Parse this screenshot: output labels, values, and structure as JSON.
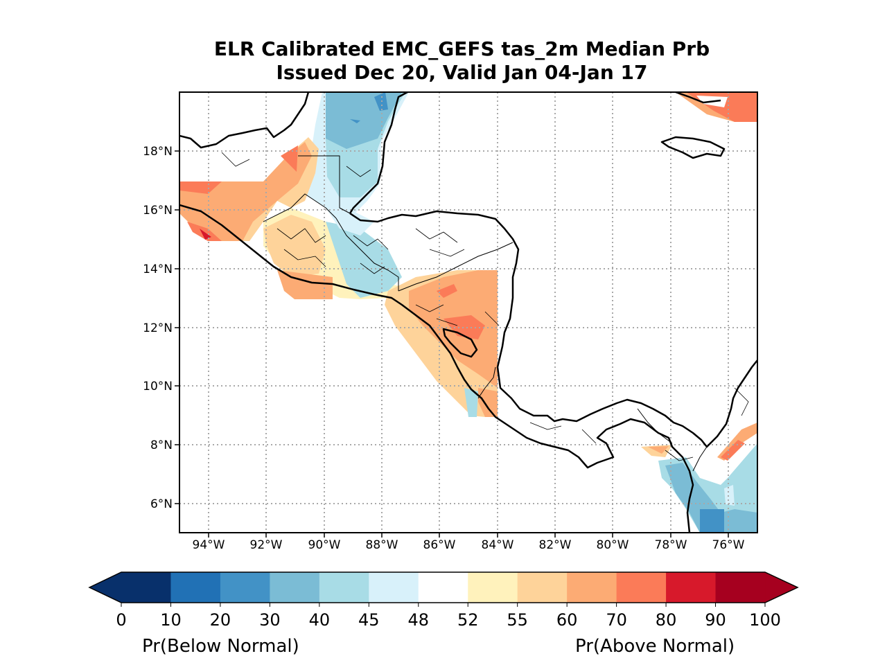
{
  "title": {
    "line1": "ELR Calibrated EMC_GEFS tas_2m Median Prb",
    "line2": "Issued Dec 20, Valid Jan 04-Jan 17"
  },
  "map": {
    "lat_ticks": [
      "18°N",
      "16°N",
      "14°N",
      "12°N",
      "10°N",
      "8°N",
      "6°N"
    ],
    "lon_ticks": [
      "94°W",
      "92°W",
      "90°W",
      "88°W",
      "86°W",
      "84°W",
      "82°W",
      "80°W",
      "78°W",
      "76°W"
    ],
    "gridlines": "dotted",
    "extent": {
      "lon": [
        -95,
        -75
      ],
      "lat": [
        5,
        20
      ]
    }
  },
  "colorbar": {
    "tick_labels": [
      "0",
      "10",
      "20",
      "30",
      "40",
      "45",
      "48",
      "52",
      "55",
      "60",
      "70",
      "80",
      "90",
      "100"
    ],
    "colors": [
      "#08306b",
      "#2171b5",
      "#4292c6",
      "#7bbcd5",
      "#a8dce6",
      "#d8f1fa",
      "#ffffff",
      "#fff2bc",
      "#fed39a",
      "#fcab74",
      "#fb7b58",
      "#d7192b",
      "#a6001f"
    ],
    "label_left": "Pr(Below Normal)",
    "label_right": "Pr(Above Normal)"
  }
}
